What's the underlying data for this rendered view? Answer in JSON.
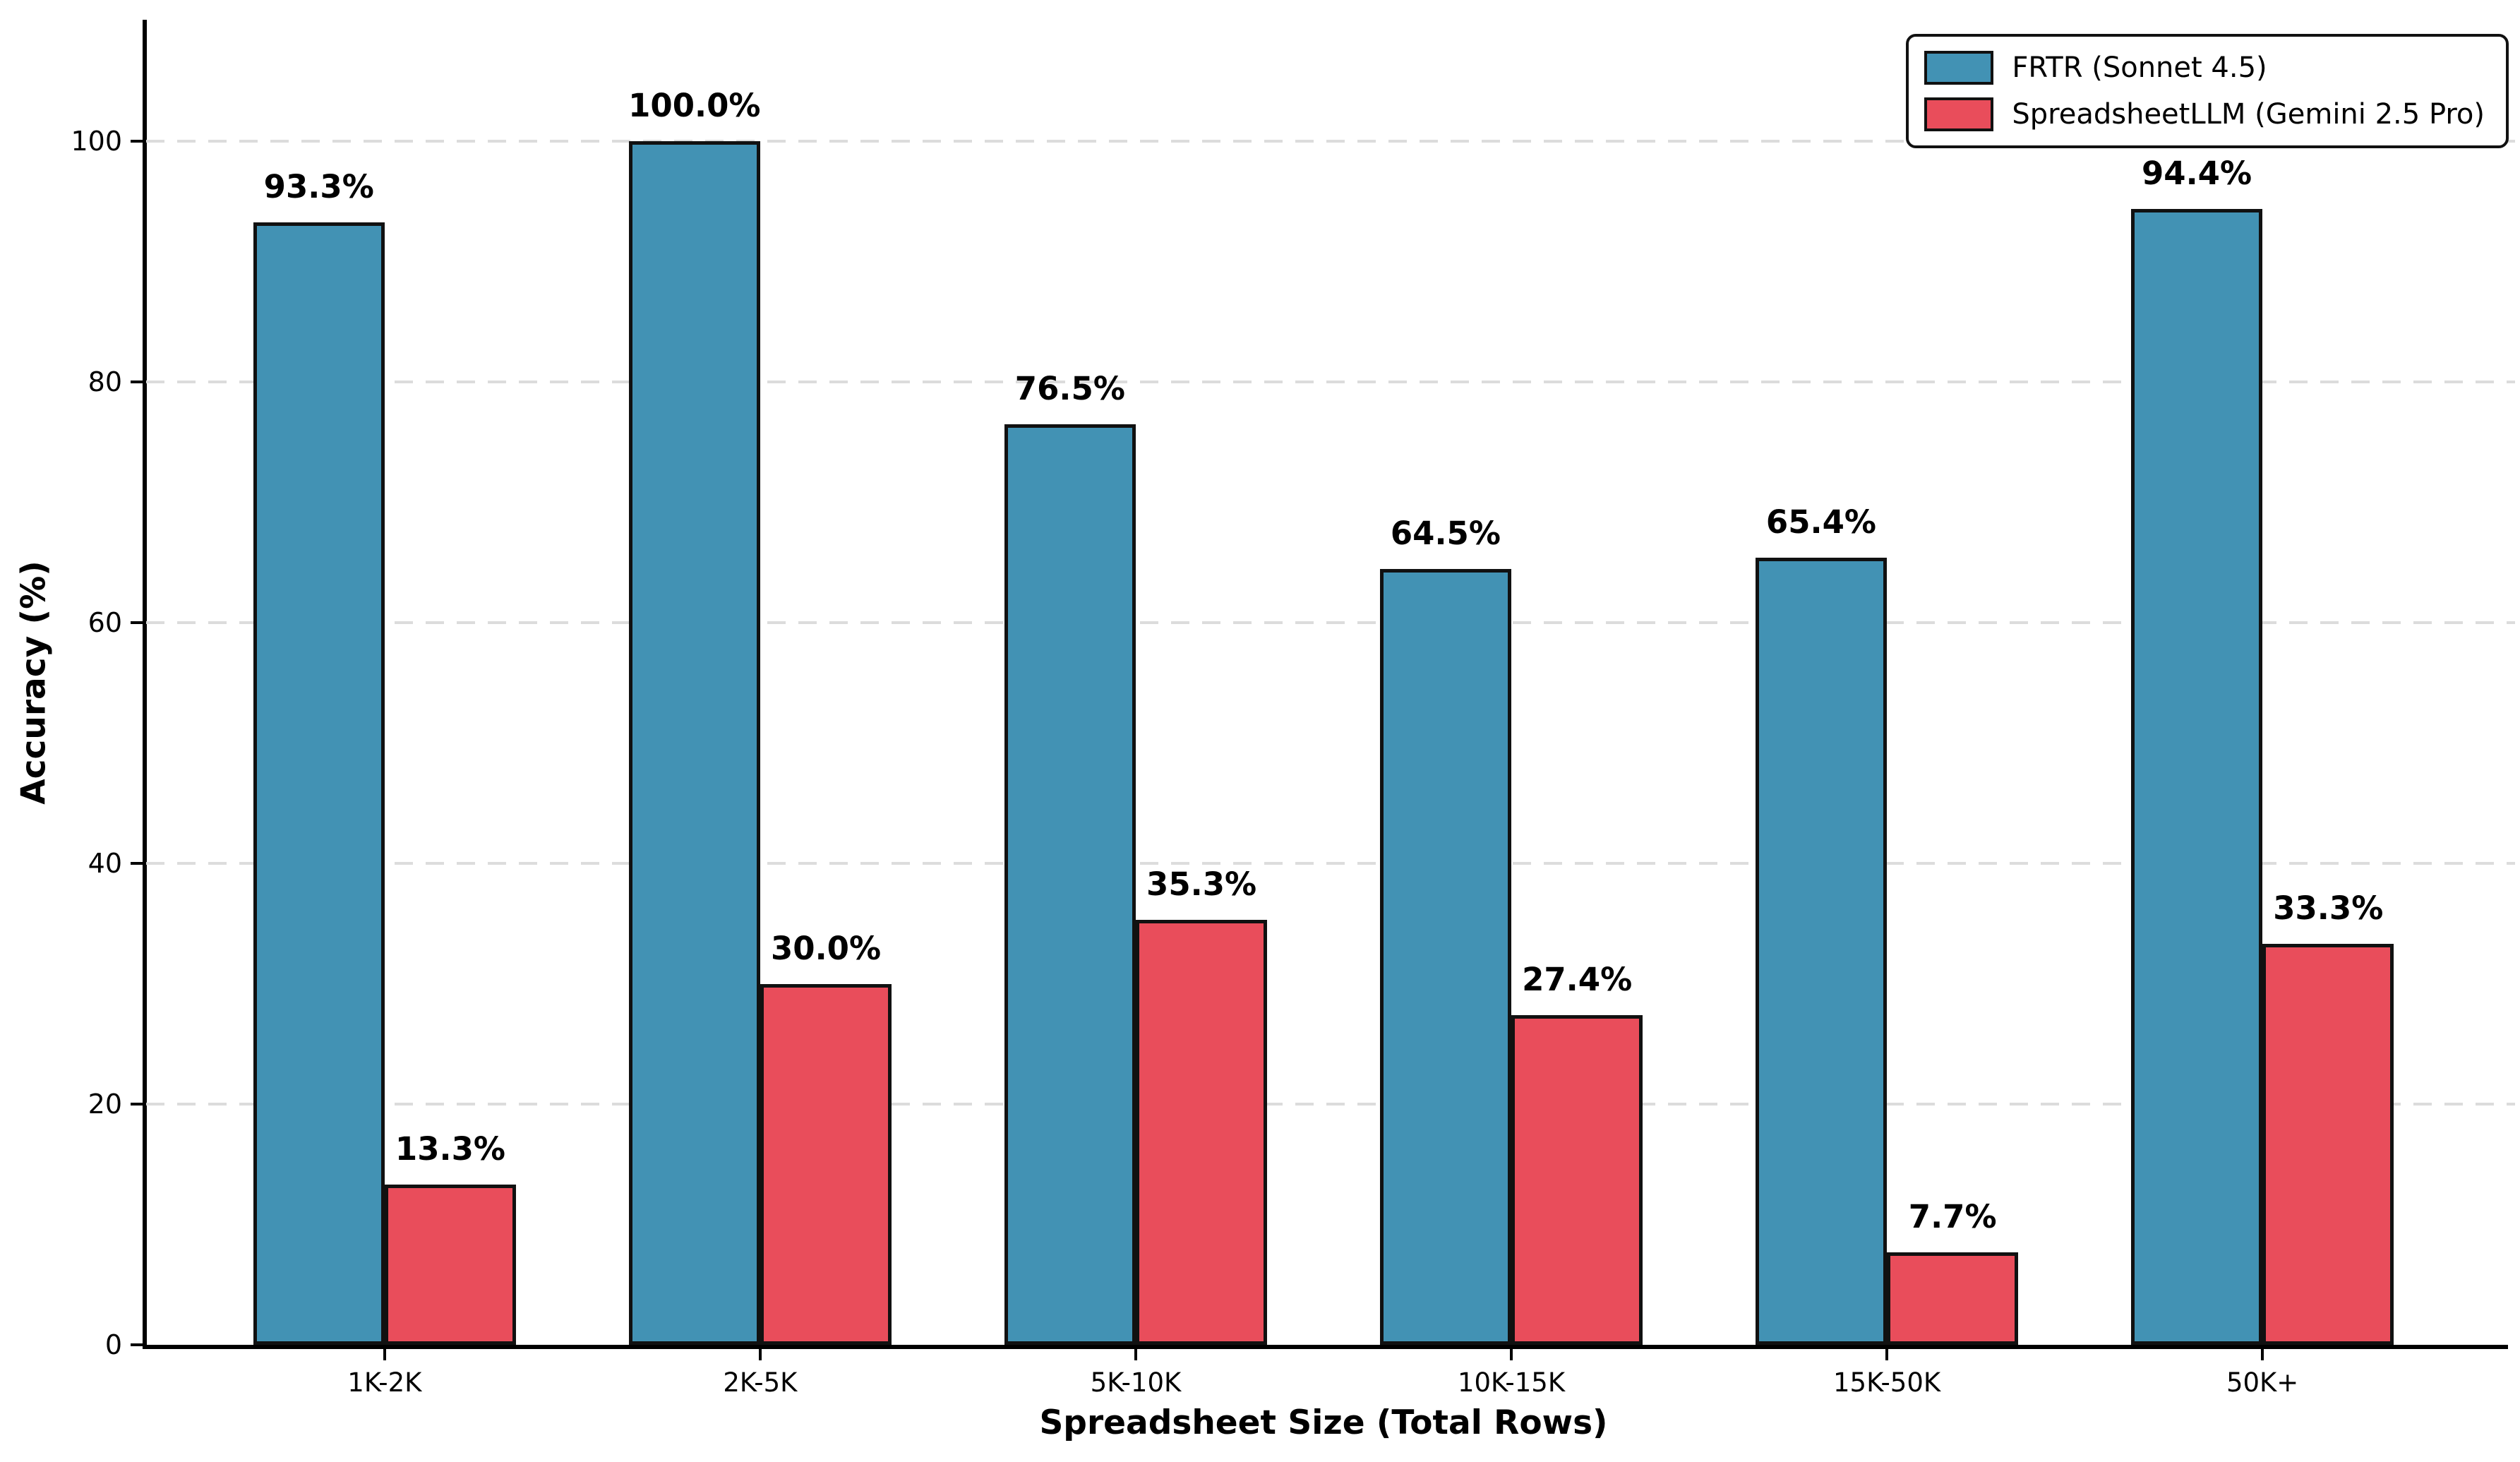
{
  "chart_data": {
    "type": "bar",
    "title": "",
    "xlabel": "Spreadsheet Size (Total Rows)",
    "ylabel": "Accuracy (%)",
    "categories": [
      "1K-2K",
      "2K-5K",
      "5K-10K",
      "10K-15K",
      "15K-50K",
      "50K+"
    ],
    "series": [
      {
        "name": "FRTR (Sonnet 4.5)",
        "color": "#4292B4",
        "values": [
          93.3,
          100.0,
          76.5,
          64.5,
          65.4,
          94.4
        ],
        "labels": [
          "93.3%",
          "100.0%",
          "76.5%",
          "64.5%",
          "65.4%",
          "94.4%"
        ]
      },
      {
        "name": "SpreadsheetLLM (Gemini 2.5 Pro)",
        "color": "#E94D5B",
        "values": [
          13.3,
          30.0,
          35.3,
          27.4,
          7.7,
          33.3
        ],
        "labels": [
          "13.3%",
          "30.0%",
          "35.3%",
          "27.4%",
          "7.7%",
          "33.3%"
        ]
      }
    ],
    "ylim": [
      0,
      110
    ],
    "yticks": [
      0,
      20,
      40,
      60,
      80,
      100
    ],
    "ytick_labels": [
      "0",
      "20",
      "40",
      "60",
      "80",
      "100"
    ],
    "grid": "horizontal-dashed",
    "grid_color": "#dcdcdc",
    "bar_edge_color": "#111111",
    "legend_position": "upper-right",
    "value_label_format": "one-decimal-percent"
  }
}
